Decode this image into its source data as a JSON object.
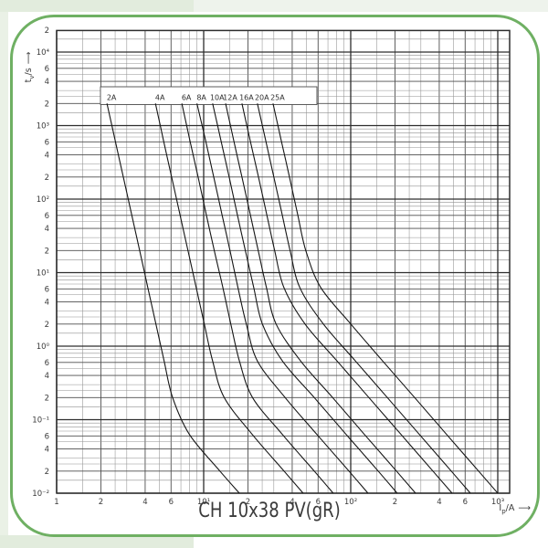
{
  "page": {
    "frame_color": "#6fb063",
    "caption": "CH 10x38 PV(gR)"
  },
  "chart_data": {
    "type": "line",
    "title": "CH 10x38 PV(gR)",
    "scale": "log-log",
    "grid": "on",
    "legend_position": "top-inside-box",
    "x_axis": {
      "label_symbol": "I",
      "label_sub": "p",
      "label_unit": "/A",
      "arrow": "⟶",
      "min": 1,
      "max": 1205,
      "ticks": [
        {
          "v": 1,
          "l": "1"
        },
        {
          "v": 2,
          "l": "2"
        },
        {
          "v": 4,
          "l": "4"
        },
        {
          "v": 6,
          "l": "6"
        },
        {
          "v": 10,
          "l": "10¹"
        },
        {
          "v": 20,
          "l": "2"
        },
        {
          "v": 40,
          "l": "4"
        },
        {
          "v": 60,
          "l": "6"
        },
        {
          "v": 100,
          "l": "10²"
        },
        {
          "v": 200,
          "l": "2"
        },
        {
          "v": 400,
          "l": "4"
        },
        {
          "v": 600,
          "l": "6"
        },
        {
          "v": 1000,
          "l": "10³"
        }
      ]
    },
    "y_axis": {
      "label_symbol": "t",
      "label_sub": "v",
      "label_unit": "/s",
      "arrow": "⟶",
      "min": 0.01,
      "max": 20000,
      "ticks": [
        {
          "v": 20000,
          "l": "2"
        },
        {
          "v": 10000,
          "l": "10⁴"
        },
        {
          "v": 6000,
          "l": "6"
        },
        {
          "v": 4000,
          "l": "4"
        },
        {
          "v": 2000,
          "l": "2"
        },
        {
          "v": 1000,
          "l": "10³"
        },
        {
          "v": 600,
          "l": "6"
        },
        {
          "v": 400,
          "l": "4"
        },
        {
          "v": 200,
          "l": "2"
        },
        {
          "v": 100,
          "l": "10²"
        },
        {
          "v": 60,
          "l": "6"
        },
        {
          "v": 40,
          "l": "4"
        },
        {
          "v": 20,
          "l": "2"
        },
        {
          "v": 10,
          "l": "10¹"
        },
        {
          "v": 6,
          "l": "6"
        },
        {
          "v": 4,
          "l": "4"
        },
        {
          "v": 2,
          "l": "2"
        },
        {
          "v": 1,
          "l": "10⁰"
        },
        {
          "v": 0.6,
          "l": "6"
        },
        {
          "v": 0.4,
          "l": "4"
        },
        {
          "v": 0.2,
          "l": "2"
        },
        {
          "v": 0.1,
          "l": "10⁻¹"
        },
        {
          "v": 0.06,
          "l": "6"
        },
        {
          "v": 0.04,
          "l": "4"
        },
        {
          "v": 0.02,
          "l": "2"
        },
        {
          "v": 0.01,
          "l": "10⁻²"
        }
      ]
    },
    "grid_minor_multipliers": [
      1.5,
      2,
      2.5,
      3,
      4,
      5,
      6,
      7,
      8,
      9
    ],
    "series": [
      {
        "name": "2A",
        "points": [
          [
            2.2,
            2000
          ],
          [
            2.5,
            630
          ],
          [
            2.84,
            200
          ],
          [
            3.23,
            63
          ],
          [
            3.67,
            20
          ],
          [
            4.17,
            6.3
          ],
          [
            4.73,
            2.0
          ],
          [
            5.38,
            0.63
          ],
          [
            6.15,
            0.2
          ],
          [
            8.0,
            0.063
          ],
          [
            12.9,
            0.02
          ],
          [
            17.5,
            0.01
          ]
        ]
      },
      {
        "name": "4A",
        "points": [
          [
            4.7,
            2000
          ],
          [
            5.33,
            630
          ],
          [
            6.05,
            200
          ],
          [
            6.88,
            63
          ],
          [
            7.82,
            20
          ],
          [
            8.89,
            6.3
          ],
          [
            10.1,
            2.0
          ],
          [
            11.5,
            0.63
          ],
          [
            13.8,
            0.2
          ],
          [
            21.4,
            0.063
          ],
          [
            35.2,
            0.02
          ],
          [
            47.5,
            0.01
          ]
        ]
      },
      {
        "name": "6A",
        "points": [
          [
            7.1,
            2000
          ],
          [
            8.06,
            630
          ],
          [
            9.16,
            200
          ],
          [
            10.4,
            63
          ],
          [
            11.8,
            20
          ],
          [
            13.5,
            6.3
          ],
          [
            15.3,
            2.0
          ],
          [
            17.5,
            0.63
          ],
          [
            21.5,
            0.2
          ],
          [
            34.3,
            0.063
          ],
          [
            56.5,
            0.02
          ],
          [
            76,
            0.01
          ]
        ]
      },
      {
        "name": "8A",
        "points": [
          [
            9.0,
            2000
          ],
          [
            10.3,
            630
          ],
          [
            11.7,
            200
          ],
          [
            13.3,
            63
          ],
          [
            15.1,
            20
          ],
          [
            17.1,
            6.3
          ],
          [
            19.5,
            2.0
          ],
          [
            23.2,
            0.63
          ],
          [
            35.8,
            0.2
          ],
          [
            58.9,
            0.063
          ],
          [
            97.3,
            0.02
          ],
          [
            131,
            0.01
          ]
        ]
      },
      {
        "name": "10A",
        "points": [
          [
            11.5,
            2000
          ],
          [
            13.1,
            630
          ],
          [
            14.9,
            200
          ],
          [
            16.9,
            63
          ],
          [
            19.2,
            20
          ],
          [
            21.9,
            6.3
          ],
          [
            25.1,
            2.0
          ],
          [
            34.3,
            0.63
          ],
          [
            56.5,
            0.2
          ],
          [
            93.1,
            0.063
          ],
          [
            153.8,
            0.02
          ],
          [
            207,
            0.01
          ]
        ]
      },
      {
        "name": "12A",
        "points": [
          [
            14.1,
            2000
          ],
          [
            16.0,
            630
          ],
          [
            18.2,
            200
          ],
          [
            20.7,
            63
          ],
          [
            23.5,
            20
          ],
          [
            26.7,
            6.3
          ],
          [
            31.1,
            2.0
          ],
          [
            45.6,
            0.63
          ],
          [
            75.3,
            0.2
          ],
          [
            124,
            0.063
          ],
          [
            204.7,
            0.02
          ],
          [
            276,
            0.01
          ]
        ]
      },
      {
        "name": "16A",
        "points": [
          [
            18.2,
            2000
          ],
          [
            20.7,
            630
          ],
          [
            23.6,
            200
          ],
          [
            26.8,
            63
          ],
          [
            30.4,
            20
          ],
          [
            35.1,
            6.3
          ],
          [
            48.9,
            2.0
          ],
          [
            80.7,
            0.63
          ],
          [
            133,
            0.2
          ],
          [
            219.8,
            0.063
          ],
          [
            362,
            0.02
          ],
          [
            489,
            0.01
          ]
        ]
      },
      {
        "name": "20A",
        "points": [
          [
            23.2,
            2000
          ],
          [
            26.4,
            630
          ],
          [
            30.0,
            200
          ],
          [
            34.1,
            63
          ],
          [
            38.7,
            20
          ],
          [
            45.0,
            6.3
          ],
          [
            65.2,
            2.0
          ],
          [
            107.6,
            0.63
          ],
          [
            177.5,
            0.2
          ],
          [
            293,
            0.063
          ],
          [
            483,
            0.02
          ],
          [
            651,
            0.01
          ]
        ]
      },
      {
        "name": "25A",
        "points": [
          [
            29.6,
            2000
          ],
          [
            33.7,
            630
          ],
          [
            38.3,
            200
          ],
          [
            43.5,
            63
          ],
          [
            49.5,
            20
          ],
          [
            62.5,
            6.3
          ],
          [
            100.2,
            2.0
          ],
          [
            164.8,
            0.63
          ],
          [
            272.3,
            0.2
          ],
          [
            448.7,
            0.063
          ],
          [
            741,
            0.02
          ],
          [
            1000,
            0.01
          ]
        ]
      }
    ]
  }
}
